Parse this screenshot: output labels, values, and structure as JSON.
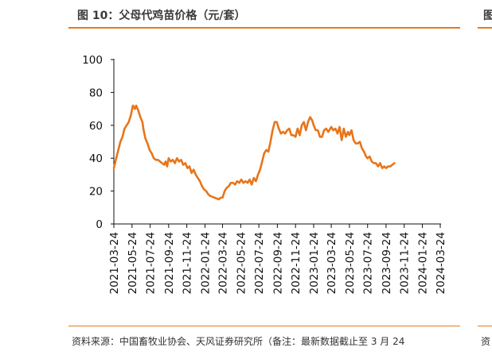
{
  "header": {
    "title": "图 10：父母代鸡苗价格（元/套）",
    "right_fragment": "图"
  },
  "footer": {
    "source": "资料来源：中国畜牧业协会、天风证券研究所（备注：最新数据截止至 3 月 24",
    "right_fragment": "资"
  },
  "colors": {
    "accent": "#e07b22",
    "line": "#e8751a"
  },
  "chart_data": {
    "type": "line",
    "title": "父母代鸡苗价格（元/套）",
    "xlabel": "",
    "ylabel": "",
    "ylim": [
      0,
      100
    ],
    "yticks": [
      0,
      20,
      40,
      60,
      80,
      100
    ],
    "xticks": [
      "2021-03-24",
      "2021-05-24",
      "2021-07-24",
      "2021-09-24",
      "2021-11-24",
      "2022-01-24",
      "2022-03-24",
      "2022-05-24",
      "2022-07-24",
      "2022-09-24",
      "2022-11-24",
      "2023-01-24",
      "2023-03-24",
      "2023-05-24",
      "2023-07-24",
      "2023-09-24",
      "2023-11-24",
      "2024-01-24",
      "2024-03-24"
    ],
    "grid": false,
    "legend": "none",
    "series": [
      {
        "color": "#e8751a",
        "points": [
          [
            "2021-03-24",
            34
          ],
          [
            "2021-04-01",
            40
          ],
          [
            "2021-04-08",
            45
          ],
          [
            "2021-04-15",
            50
          ],
          [
            "2021-04-22",
            53
          ],
          [
            "2021-04-29",
            58
          ],
          [
            "2021-05-06",
            60
          ],
          [
            "2021-05-13",
            62
          ],
          [
            "2021-05-20",
            66
          ],
          [
            "2021-05-27",
            72
          ],
          [
            "2021-06-03",
            70
          ],
          [
            "2021-06-07",
            72
          ],
          [
            "2021-06-14",
            69
          ],
          [
            "2021-06-21",
            65
          ],
          [
            "2021-06-28",
            62
          ],
          [
            "2021-07-01",
            58
          ],
          [
            "2021-07-08",
            52
          ],
          [
            "2021-07-15",
            49
          ],
          [
            "2021-07-22",
            45
          ],
          [
            "2021-07-29",
            43
          ],
          [
            "2021-08-05",
            40
          ],
          [
            "2021-08-12",
            39
          ],
          [
            "2021-08-19",
            39
          ],
          [
            "2021-08-26",
            38
          ],
          [
            "2021-09-02",
            37
          ],
          [
            "2021-09-09",
            36
          ],
          [
            "2021-09-14",
            38
          ],
          [
            "2021-09-19",
            35
          ],
          [
            "2021-09-24",
            40
          ],
          [
            "2021-10-01",
            38
          ],
          [
            "2021-10-08",
            39
          ],
          [
            "2021-10-15",
            37
          ],
          [
            "2021-10-22",
            40
          ],
          [
            "2021-10-29",
            38
          ],
          [
            "2021-11-05",
            39
          ],
          [
            "2021-11-12",
            36
          ],
          [
            "2021-11-19",
            37
          ],
          [
            "2021-11-26",
            34
          ],
          [
            "2021-12-03",
            35
          ],
          [
            "2021-12-10",
            31
          ],
          [
            "2021-12-17",
            33
          ],
          [
            "2021-12-24",
            30
          ],
          [
            "2021-12-31",
            28
          ],
          [
            "2022-01-07",
            26
          ],
          [
            "2022-01-14",
            23
          ],
          [
            "2022-01-21",
            21
          ],
          [
            "2022-01-28",
            20
          ],
          [
            "2022-02-04",
            18
          ],
          [
            "2022-02-11",
            17
          ],
          [
            "2022-02-18",
            16.5
          ],
          [
            "2022-02-25",
            16
          ],
          [
            "2022-03-04",
            15.5
          ],
          [
            "2022-03-11",
            15
          ],
          [
            "2022-03-18",
            16
          ],
          [
            "2022-03-24",
            16
          ],
          [
            "2022-03-31",
            20
          ],
          [
            "2022-04-07",
            22
          ],
          [
            "2022-04-14",
            23
          ],
          [
            "2022-04-21",
            25
          ],
          [
            "2022-04-28",
            25
          ],
          [
            "2022-05-05",
            24
          ],
          [
            "2022-05-12",
            26
          ],
          [
            "2022-05-19",
            25
          ],
          [
            "2022-05-26",
            27
          ],
          [
            "2022-06-02",
            25
          ],
          [
            "2022-06-09",
            26
          ],
          [
            "2022-06-16",
            25
          ],
          [
            "2022-06-23",
            27
          ],
          [
            "2022-06-30",
            24
          ],
          [
            "2022-07-07",
            28
          ],
          [
            "2022-07-14",
            26
          ],
          [
            "2022-07-21",
            30
          ],
          [
            "2022-07-28",
            33
          ],
          [
            "2022-08-04",
            38
          ],
          [
            "2022-08-11",
            43
          ],
          [
            "2022-08-18",
            45
          ],
          [
            "2022-08-25",
            44
          ],
          [
            "2022-09-01",
            50
          ],
          [
            "2022-09-08",
            57
          ],
          [
            "2022-09-15",
            62
          ],
          [
            "2022-09-22",
            62
          ],
          [
            "2022-09-29",
            58
          ],
          [
            "2022-10-06",
            55
          ],
          [
            "2022-10-13",
            56
          ],
          [
            "2022-10-20",
            55
          ],
          [
            "2022-10-27",
            57
          ],
          [
            "2022-11-03",
            58
          ],
          [
            "2022-11-10",
            54
          ],
          [
            "2022-11-17",
            54
          ],
          [
            "2022-11-24",
            53
          ],
          [
            "2022-12-01",
            58
          ],
          [
            "2022-12-08",
            54
          ],
          [
            "2022-12-15",
            60
          ],
          [
            "2022-12-22",
            62
          ],
          [
            "2022-12-29",
            57
          ],
          [
            "2023-01-05",
            62
          ],
          [
            "2023-01-12",
            65
          ],
          [
            "2023-01-19",
            63
          ],
          [
            "2023-01-24",
            60
          ],
          [
            "2023-01-31",
            57
          ],
          [
            "2023-02-07",
            57
          ],
          [
            "2023-02-14",
            53
          ],
          [
            "2023-02-21",
            53
          ],
          [
            "2023-02-28",
            57
          ],
          [
            "2023-03-07",
            58
          ],
          [
            "2023-03-14",
            56
          ],
          [
            "2023-03-24",
            59
          ],
          [
            "2023-03-31",
            57
          ],
          [
            "2023-04-07",
            58
          ],
          [
            "2023-04-14",
            55
          ],
          [
            "2023-04-21",
            59
          ],
          [
            "2023-04-28",
            51
          ],
          [
            "2023-05-05",
            58
          ],
          [
            "2023-05-12",
            53
          ],
          [
            "2023-05-19",
            56
          ],
          [
            "2023-05-24",
            54
          ],
          [
            "2023-05-31",
            57
          ],
          [
            "2023-06-07",
            51
          ],
          [
            "2023-06-14",
            49
          ],
          [
            "2023-06-21",
            49
          ],
          [
            "2023-06-28",
            50
          ],
          [
            "2023-07-05",
            46
          ],
          [
            "2023-07-12",
            44
          ],
          [
            "2023-07-19",
            41
          ],
          [
            "2023-07-24",
            40
          ],
          [
            "2023-07-31",
            41
          ],
          [
            "2023-08-07",
            38
          ],
          [
            "2023-08-14",
            37
          ],
          [
            "2023-08-21",
            37
          ],
          [
            "2023-08-28",
            35
          ],
          [
            "2023-09-04",
            37
          ],
          [
            "2023-09-11",
            34
          ],
          [
            "2023-09-18",
            35
          ],
          [
            "2023-09-24",
            34
          ],
          [
            "2023-10-01",
            35
          ],
          [
            "2023-10-08",
            35
          ],
          [
            "2023-10-15",
            36
          ],
          [
            "2023-10-22",
            37
          ]
        ]
      }
    ]
  }
}
